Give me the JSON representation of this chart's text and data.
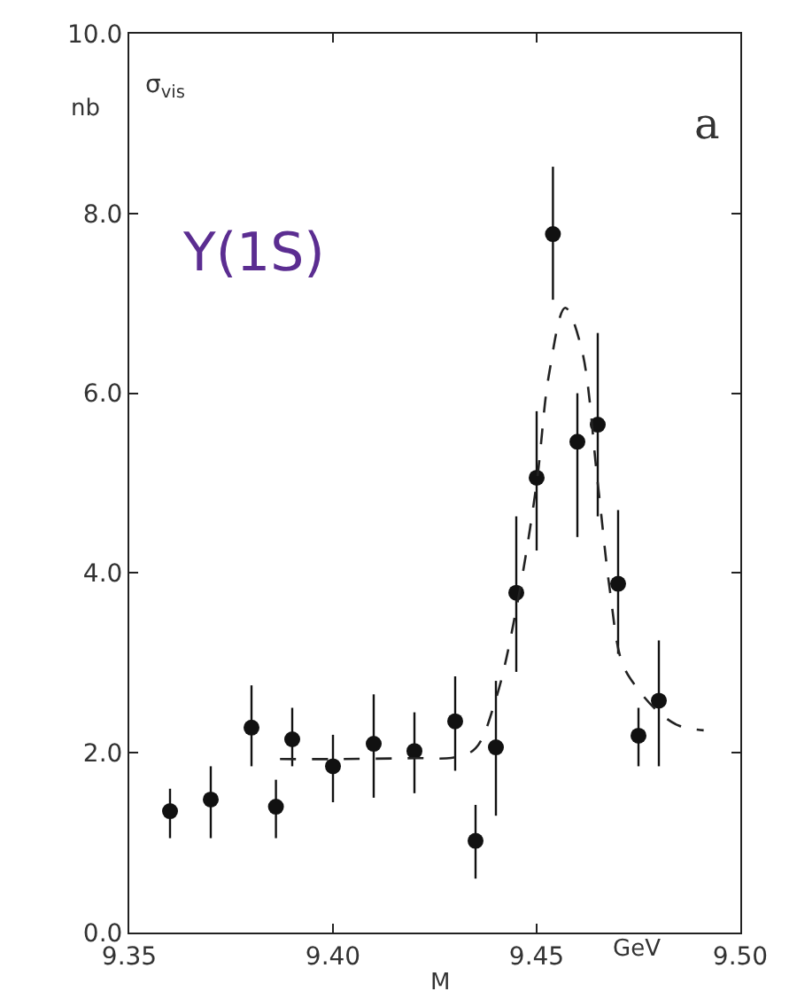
{
  "chart_data": {
    "type": "scatter",
    "title": "Y(1S)",
    "xlabel": "M",
    "ylabel": "nb",
    "annotations": [
      "σ$_{vis}$",
      "a",
      "GeV"
    ],
    "xlim": [
      9.35,
      9.5
    ],
    "xticks": [
      {
        "value": 9.35,
        "label": "9.35"
      },
      {
        "value": 9.4,
        "label": "9.40"
      },
      {
        "value": 9.45,
        "label": "9.45"
      },
      {
        "value": 9.5,
        "label": "9.50"
      }
    ],
    "ylim": [
      0,
      10
    ],
    "yticks": [
      {
        "value": 0,
        "label": "0.0"
      },
      {
        "value": 2,
        "label": "2.0"
      },
      {
        "value": 4,
        "label": "4.0"
      },
      {
        "value": 6,
        "label": "6.0"
      },
      {
        "value": 8,
        "label": "8.0"
      },
      {
        "value": 10,
        "label": "10.0"
      }
    ],
    "series": [
      {
        "color": "#111111",
        "marker": "circle",
        "x": [
          9.36,
          9.37,
          9.38,
          9.386,
          9.39,
          9.4,
          9.41,
          9.42,
          9.43,
          9.435,
          9.44,
          9.445,
          9.45,
          9.454,
          9.46,
          9.465,
          9.47,
          9.475,
          9.48
        ],
        "values": [
          1.35,
          1.48,
          2.28,
          1.4,
          2.15,
          1.85,
          2.1,
          2.02,
          2.35,
          1.02,
          2.06,
          3.78,
          5.06,
          7.77,
          5.46,
          5.65,
          3.88,
          2.19,
          2.58
        ],
        "errors": [
          [
            1.05,
            1.6
          ],
          [
            1.05,
            1.85
          ],
          [
            1.85,
            2.75
          ],
          [
            1.05,
            1.7
          ],
          [
            1.85,
            2.5
          ],
          [
            1.45,
            2.2
          ],
          [
            1.5,
            2.65
          ],
          [
            1.55,
            2.45
          ],
          [
            1.8,
            2.85
          ],
          [
            0.6,
            1.42
          ],
          [
            1.3,
            2.8
          ],
          [
            2.9,
            4.63
          ],
          [
            4.25,
            5.8
          ],
          [
            7.04,
            8.52
          ],
          [
            4.4,
            6.0
          ],
          [
            4.63,
            6.67
          ],
          [
            3.1,
            4.7
          ],
          [
            1.85,
            2.5
          ],
          [
            1.85,
            3.25
          ]
        ]
      },
      {
        "type": "line",
        "color": "#222222",
        "marker": "none",
        "line_style": "dashed",
        "x": [
          9.387,
          9.4,
          9.42,
          9.43,
          9.435,
          9.44,
          9.445,
          9.45,
          9.453,
          9.457,
          9.461,
          9.465,
          9.468,
          9.471,
          9.475,
          9.48,
          9.485,
          9.491
        ],
        "values": [
          1.93,
          1.93,
          1.94,
          1.95,
          2.05,
          2.6,
          3.6,
          5.0,
          6.2,
          6.95,
          6.5,
          5.0,
          3.8,
          3.0,
          2.7,
          2.45,
          2.3,
          2.25
        ]
      }
    ]
  }
}
